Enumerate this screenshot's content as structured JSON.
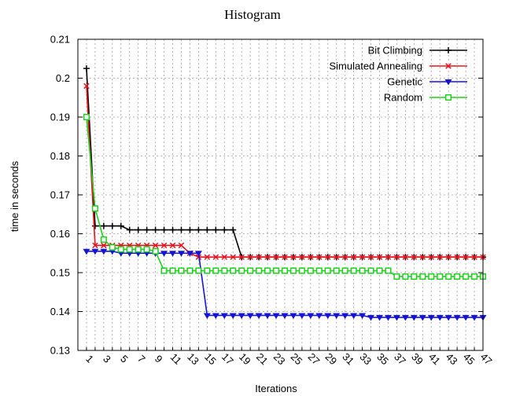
{
  "chart_data": {
    "type": "line",
    "title": "Histogram",
    "xlabel": "Iterations",
    "ylabel": "time in seconds",
    "xlim": [
      0,
      47
    ],
    "ylim": [
      0.13,
      0.21
    ],
    "yticks": [
      "0.13",
      "0.14",
      "0.15",
      "0.16",
      "0.17",
      "0.18",
      "0.19",
      "0.2",
      "0.21"
    ],
    "xticks": [
      "1",
      "3",
      "5",
      "7",
      "9",
      "11",
      "13",
      "15",
      "17",
      "19",
      "21",
      "23",
      "25",
      "27",
      "29",
      "31",
      "33",
      "35",
      "37",
      "39",
      "41",
      "43",
      "45",
      "47"
    ],
    "grid": true,
    "legend_position": "top-right",
    "x": [
      1,
      2,
      3,
      4,
      5,
      6,
      7,
      8,
      9,
      10,
      11,
      12,
      13,
      14,
      15,
      16,
      17,
      18,
      19,
      20,
      21,
      22,
      23,
      24,
      25,
      26,
      27,
      28,
      29,
      30,
      31,
      32,
      33,
      34,
      35,
      36,
      37,
      38,
      39,
      40,
      41,
      42,
      43,
      44,
      45,
      46,
      47
    ],
    "series": [
      {
        "name": "Bit Climbing",
        "color": "#000000",
        "marker": "plus",
        "values": [
          0.2025,
          0.162,
          0.162,
          0.162,
          0.162,
          0.161,
          0.161,
          0.161,
          0.161,
          0.161,
          0.161,
          0.161,
          0.161,
          0.161,
          0.161,
          0.161,
          0.161,
          0.161,
          0.154,
          0.154,
          0.154,
          0.154,
          0.154,
          0.154,
          0.154,
          0.154,
          0.154,
          0.154,
          0.154,
          0.154,
          0.154,
          0.154,
          0.154,
          0.154,
          0.154,
          0.154,
          0.154,
          0.154,
          0.154,
          0.154,
          0.154,
          0.154,
          0.154,
          0.154,
          0.154,
          0.154,
          0.154
        ]
      },
      {
        "name": "Simulated Annealing",
        "color": "#e8141e",
        "marker": "x",
        "values": [
          0.198,
          0.157,
          0.157,
          0.157,
          0.157,
          0.157,
          0.157,
          0.157,
          0.157,
          0.157,
          0.157,
          0.157,
          0.155,
          0.154,
          0.154,
          0.154,
          0.154,
          0.154,
          0.154,
          0.154,
          0.154,
          0.154,
          0.154,
          0.154,
          0.154,
          0.154,
          0.154,
          0.154,
          0.154,
          0.154,
          0.154,
          0.154,
          0.154,
          0.154,
          0.154,
          0.154,
          0.154,
          0.154,
          0.154,
          0.154,
          0.154,
          0.154,
          0.154,
          0.154,
          0.154,
          0.154,
          0.154
        ]
      },
      {
        "name": "Genetic",
        "color": "#1414d8",
        "marker": "triangle-down",
        "values": [
          0.1555,
          0.1555,
          0.1555,
          0.1555,
          0.155,
          0.155,
          0.155,
          0.155,
          0.155,
          0.155,
          0.155,
          0.155,
          0.155,
          0.155,
          0.139,
          0.139,
          0.139,
          0.139,
          0.139,
          0.139,
          0.139,
          0.139,
          0.139,
          0.139,
          0.139,
          0.139,
          0.139,
          0.139,
          0.139,
          0.139,
          0.139,
          0.139,
          0.139,
          0.1385,
          0.1385,
          0.1385,
          0.1385,
          0.1385,
          0.1385,
          0.1385,
          0.1385,
          0.1385,
          0.1385,
          0.1385,
          0.1385,
          0.1385,
          0.1385
        ]
      },
      {
        "name": "Random",
        "color": "#1ed21e",
        "marker": "square",
        "values": [
          0.19,
          0.1665,
          0.1585,
          0.1565,
          0.156,
          0.156,
          0.156,
          0.156,
          0.1555,
          0.1505,
          0.1505,
          0.1505,
          0.1505,
          0.1505,
          0.1505,
          0.1505,
          0.1505,
          0.1505,
          0.1505,
          0.1505,
          0.1505,
          0.1505,
          0.1505,
          0.1505,
          0.1505,
          0.1505,
          0.1505,
          0.1505,
          0.1505,
          0.1505,
          0.1505,
          0.1505,
          0.1505,
          0.1505,
          0.1505,
          0.1505,
          0.149,
          0.149,
          0.149,
          0.149,
          0.149,
          0.149,
          0.149,
          0.149,
          0.149,
          0.149,
          0.149
        ]
      }
    ]
  }
}
